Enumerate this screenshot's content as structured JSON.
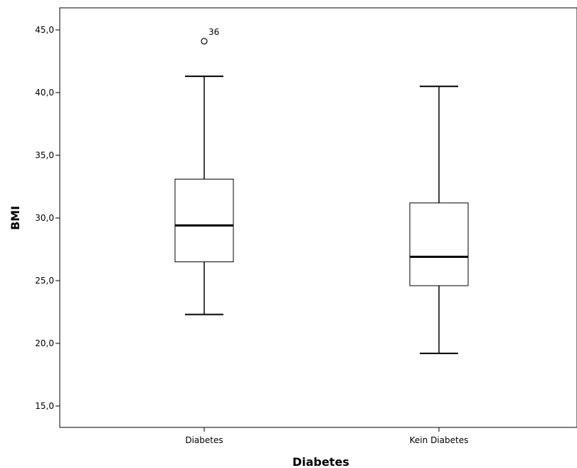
{
  "chart_data": {
    "type": "boxplot",
    "xlabel": "Diabetes",
    "ylabel": "BMI",
    "ylim": [
      13.5,
      46.5
    ],
    "yticks": [
      15,
      20,
      25,
      30,
      35,
      40,
      45
    ],
    "ytick_labels": [
      "15,0",
      "20,0",
      "25,0",
      "30,0",
      "35,0",
      "40,0",
      "45,0"
    ],
    "categories": [
      "Diabetes",
      "Kein Diabetes"
    ],
    "boxes": [
      {
        "category": "Diabetes",
        "whisker_low": 22.3,
        "q1": 26.5,
        "median": 29.4,
        "q3": 33.1,
        "whisker_high": 41.3,
        "outliers": [
          {
            "value": 44.1,
            "label": "36"
          }
        ]
      },
      {
        "category": "Kein Diabetes",
        "whisker_low": 19.2,
        "q1": 24.6,
        "median": 26.9,
        "q3": 31.2,
        "whisker_high": 40.5,
        "outliers": []
      }
    ],
    "grid": false,
    "colors": {
      "box_fill": "#ffffff",
      "stroke": "#000000",
      "frame": "#000000"
    }
  }
}
